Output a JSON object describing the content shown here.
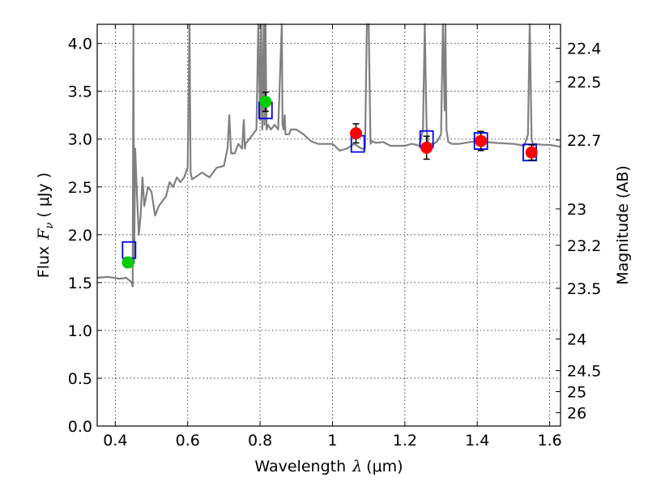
{
  "chart_data": {
    "type": "scatter",
    "xlabel": "Wavelength",
    "xlabel_symbol": "λ",
    "xlabel_unit": "(μm)",
    "ylabel": "Flux",
    "ylabel_symbol": "F",
    "ylabel_subscript": "ν",
    "ylabel_unit": "( μJy )",
    "y2label": "Magnitude (AB)",
    "xlim": [
      0.35,
      1.63
    ],
    "ylim": [
      0.0,
      4.2
    ],
    "grid": true,
    "x_ticks": [
      {
        "value": 0.4,
        "label": "0.4"
      },
      {
        "value": 0.6,
        "label": "0.6"
      },
      {
        "value": 0.8,
        "label": "0.8"
      },
      {
        "value": 1.0,
        "label": "1"
      },
      {
        "value": 1.2,
        "label": "1.2"
      },
      {
        "value": 1.4,
        "label": "1.4"
      },
      {
        "value": 1.6,
        "label": "1.6"
      }
    ],
    "y_ticks": [
      {
        "value": 0.0,
        "label": "0.0"
      },
      {
        "value": 0.5,
        "label": "0.5"
      },
      {
        "value": 1.0,
        "label": "1.0"
      },
      {
        "value": 1.5,
        "label": "1.5"
      },
      {
        "value": 2.0,
        "label": "2.0"
      },
      {
        "value": 2.5,
        "label": "2.5"
      },
      {
        "value": 3.0,
        "label": "3.0"
      },
      {
        "value": 3.5,
        "label": "3.5"
      },
      {
        "value": 4.0,
        "label": "4.0"
      }
    ],
    "y2_ticks": [
      {
        "flux": 3.95,
        "label": "22.4"
      },
      {
        "flux": 3.6,
        "label": "22.5"
      },
      {
        "flux": 2.99,
        "label": "22.7"
      },
      {
        "flux": 2.27,
        "label": "23"
      },
      {
        "flux": 1.89,
        "label": "23.2"
      },
      {
        "flux": 1.44,
        "label": "23.5"
      },
      {
        "flux": 0.91,
        "label": "24"
      },
      {
        "flux": 0.58,
        "label": "24.5"
      },
      {
        "flux": 0.36,
        "label": "25"
      },
      {
        "flux": 0.14,
        "label": "26"
      }
    ],
    "series": [
      {
        "kind": "line",
        "color": "#808080",
        "x": [
          0.35,
          0.38,
          0.41,
          0.43,
          0.44,
          0.445,
          0.448,
          0.45,
          0.452,
          0.455,
          0.46,
          0.465,
          0.47,
          0.475,
          0.48,
          0.49,
          0.5,
          0.51,
          0.52,
          0.53,
          0.54,
          0.55,
          0.56,
          0.57,
          0.58,
          0.59,
          0.6,
          0.605,
          0.608,
          0.612,
          0.62,
          0.64,
          0.66,
          0.68,
          0.7,
          0.71,
          0.715,
          0.72,
          0.73,
          0.74,
          0.75,
          0.755,
          0.758,
          0.76,
          0.77,
          0.78,
          0.79,
          0.795,
          0.8,
          0.803,
          0.806,
          0.81,
          0.812,
          0.815,
          0.818,
          0.822,
          0.83,
          0.84,
          0.85,
          0.86,
          0.862,
          0.865,
          0.868,
          0.87,
          0.88,
          0.885,
          0.89,
          0.9,
          0.92,
          0.94,
          0.96,
          0.98,
          1.0,
          1.02,
          1.04,
          1.06,
          1.08,
          1.09,
          1.095,
          1.1,
          1.105,
          1.11,
          1.12,
          1.14,
          1.16,
          1.18,
          1.2,
          1.22,
          1.24,
          1.25,
          1.255,
          1.26,
          1.265,
          1.27,
          1.28,
          1.29,
          1.3,
          1.305,
          1.31,
          1.312,
          1.315,
          1.32,
          1.33,
          1.35,
          1.4,
          1.45,
          1.5,
          1.53,
          1.54,
          1.545,
          1.55,
          1.555,
          1.56,
          1.58,
          1.6,
          1.63
        ],
        "y": [
          1.55,
          1.56,
          1.54,
          1.55,
          1.52,
          1.5,
          1.46,
          4.2,
          1.7,
          2.9,
          2.4,
          2.0,
          2.2,
          2.6,
          2.3,
          2.5,
          2.45,
          2.2,
          2.3,
          2.35,
          2.4,
          2.55,
          2.5,
          2.6,
          2.55,
          2.6,
          2.7,
          4.2,
          2.65,
          2.58,
          2.6,
          2.65,
          2.6,
          2.7,
          2.72,
          2.9,
          3.25,
          2.85,
          2.85,
          2.95,
          2.9,
          3.2,
          2.9,
          2.95,
          3.0,
          3.05,
          3.1,
          4.2,
          3.2,
          4.2,
          3.1,
          4.2,
          3.15,
          4.2,
          3.1,
          3.15,
          3.1,
          3.15,
          3.1,
          4.2,
          3.15,
          3.1,
          3.25,
          3.05,
          3.05,
          3.1,
          3.1,
          3.1,
          3.05,
          2.98,
          2.95,
          2.95,
          2.95,
          2.88,
          2.9,
          2.95,
          2.9,
          2.9,
          4.2,
          4.2,
          2.95,
          2.98,
          2.96,
          2.97,
          2.93,
          2.93,
          2.93,
          2.95,
          2.93,
          3.1,
          4.2,
          3.1,
          2.95,
          2.95,
          2.95,
          2.98,
          3.05,
          4.2,
          3.3,
          4.2,
          3.1,
          2.97,
          2.95,
          2.95,
          2.98,
          2.96,
          2.95,
          2.93,
          3.05,
          4.2,
          3.0,
          2.93,
          2.95,
          2.94,
          2.94,
          2.92
        ]
      },
      {
        "kind": "squares",
        "color": "#0000ee",
        "x": [
          0.438,
          0.815,
          1.07,
          1.26,
          1.41,
          1.545
        ],
        "y": [
          1.84,
          3.3,
          2.95,
          3.0,
          2.98,
          2.86
        ]
      },
      {
        "kind": "points",
        "color": "#00cc00",
        "x": [
          0.435,
          0.815
        ],
        "y": [
          1.71,
          3.39
        ],
        "err": [
          0.05,
          0.1
        ]
      },
      {
        "kind": "points",
        "color": "#ff0000",
        "x": [
          1.065,
          1.26,
          1.41,
          1.55
        ],
        "y": [
          3.06,
          2.91,
          2.98,
          2.86
        ],
        "err": [
          0.1,
          0.12,
          0.1,
          0.08
        ]
      }
    ]
  }
}
